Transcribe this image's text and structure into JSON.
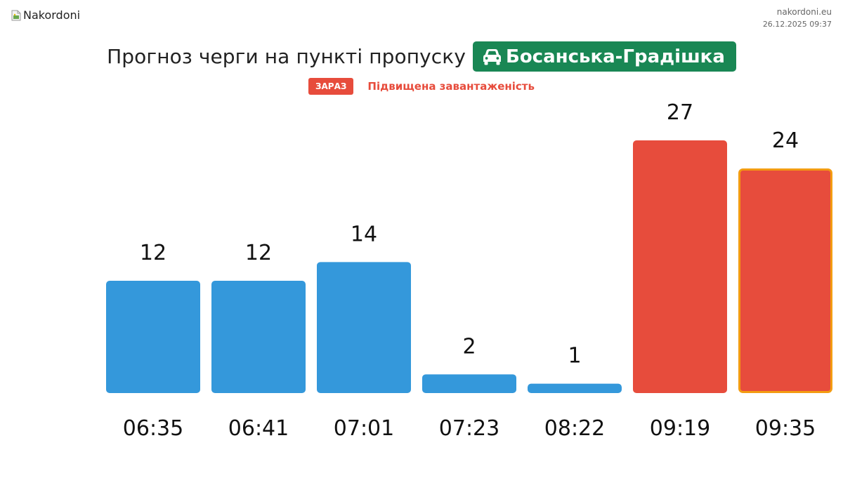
{
  "header": {
    "logo_alt": "Nakordoni",
    "site": "nakordoni.eu",
    "timestamp": "26.12.2025 09:37"
  },
  "title": {
    "prefix": "Прогноз черги на пункті пропуску",
    "crossing_icon": "car-icon",
    "crossing": "Босанська-Градішка"
  },
  "status": {
    "badge": "ЗАРАЗ",
    "text": "Підвищена завантаженість"
  },
  "colors": {
    "normal": "#3498db",
    "high": "#e74c3c",
    "current_outline": "#f39c12",
    "badge_green": "#198754"
  },
  "chart_data": {
    "type": "bar",
    "categories": [
      "06:35",
      "06:41",
      "07:01",
      "07:23",
      "08:22",
      "09:19",
      "09:35"
    ],
    "values": [
      12,
      12,
      14,
      2,
      1,
      27,
      24
    ],
    "levels": [
      "normal",
      "normal",
      "normal",
      "normal",
      "normal",
      "high",
      "high"
    ],
    "current_index": 6,
    "title": "",
    "xlabel": "",
    "ylabel": "",
    "ylim": [
      0,
      27
    ],
    "grid": false,
    "legend": "none"
  }
}
